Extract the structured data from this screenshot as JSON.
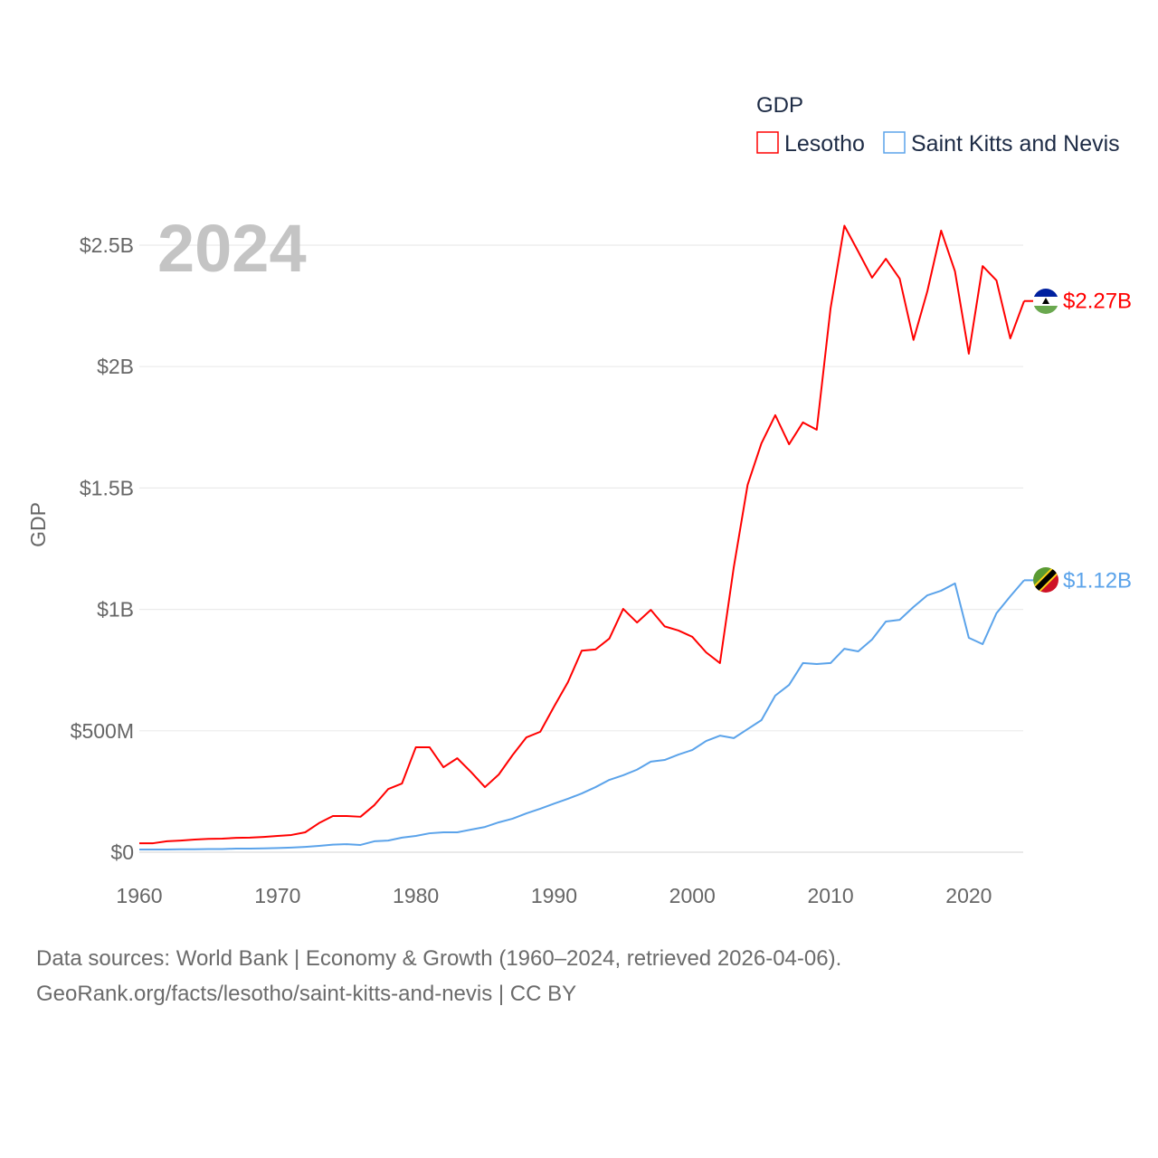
{
  "chart_data": {
    "type": "line",
    "title": "",
    "year_label": "2024",
    "xlabel": "",
    "ylabel": "GDP",
    "xlim": [
      1960,
      2024
    ],
    "ylim": [
      0,
      2.7
    ],
    "y_unit": "USD billions",
    "grid": true,
    "x_ticks": [
      1960,
      1970,
      1980,
      1990,
      2000,
      2010,
      2020
    ],
    "x_tick_labels": [
      "1960",
      "1970",
      "1980",
      "1990",
      "2000",
      "2010",
      "2020"
    ],
    "y_ticks": [
      0,
      0.5,
      1,
      1.5,
      2,
      2.5
    ],
    "y_tick_labels": [
      "$0",
      "$500M",
      "$1B",
      "$1.5B",
      "$2B",
      "$2.5B"
    ],
    "legend": {
      "title": "GDP",
      "placement": "top-right"
    },
    "x": [
      1960,
      1961,
      1962,
      1963,
      1964,
      1965,
      1966,
      1967,
      1968,
      1969,
      1970,
      1971,
      1972,
      1973,
      1974,
      1975,
      1976,
      1977,
      1978,
      1979,
      1980,
      1981,
      1982,
      1983,
      1984,
      1985,
      1986,
      1987,
      1988,
      1989,
      1990,
      1991,
      1992,
      1993,
      1994,
      1995,
      1996,
      1997,
      1998,
      1999,
      2000,
      2001,
      2002,
      2003,
      2004,
      2005,
      2006,
      2007,
      2008,
      2009,
      2010,
      2011,
      2012,
      2013,
      2014,
      2015,
      2016,
      2017,
      2018,
      2019,
      2020,
      2021,
      2022,
      2023,
      2024
    ],
    "series": [
      {
        "name": "Lesotho",
        "color": "#ff0000",
        "end_label": "$2.27B",
        "flag": "lesotho-flag",
        "values": [
          0.037,
          0.037,
          0.045,
          0.048,
          0.052,
          0.055,
          0.056,
          0.059,
          0.06,
          0.063,
          0.067,
          0.071,
          0.082,
          0.12,
          0.149,
          0.149,
          0.146,
          0.194,
          0.26,
          0.283,
          0.432,
          0.432,
          0.35,
          0.387,
          0.33,
          0.268,
          0.32,
          0.4,
          0.473,
          0.496,
          0.6,
          0.7,
          0.83,
          0.835,
          0.88,
          1.002,
          0.946,
          0.998,
          0.93,
          0.913,
          0.887,
          0.823,
          0.779,
          1.174,
          1.513,
          1.684,
          1.8,
          1.68,
          1.77,
          1.74,
          2.24,
          2.58,
          2.474,
          2.366,
          2.444,
          2.362,
          2.11,
          2.31,
          2.56,
          2.392,
          2.053,
          2.414,
          2.355,
          2.116,
          2.27
        ]
      },
      {
        "name": "Saint Kitts and Nevis",
        "color": "#5ba3ea",
        "end_label": "$1.12B",
        "flag": "saint-kitts-and-nevis-flag",
        "values": [
          0.011,
          0.011,
          0.011,
          0.012,
          0.012,
          0.013,
          0.013,
          0.015,
          0.015,
          0.016,
          0.017,
          0.019,
          0.022,
          0.026,
          0.031,
          0.033,
          0.03,
          0.045,
          0.048,
          0.06,
          0.067,
          0.078,
          0.082,
          0.082,
          0.093,
          0.104,
          0.123,
          0.138,
          0.16,
          0.179,
          0.2,
          0.22,
          0.242,
          0.268,
          0.298,
          0.317,
          0.34,
          0.373,
          0.38,
          0.402,
          0.421,
          0.458,
          0.48,
          0.47,
          0.507,
          0.544,
          0.645,
          0.689,
          0.779,
          0.775,
          0.779,
          0.838,
          0.827,
          0.876,
          0.95,
          0.957,
          1.01,
          1.058,
          1.077,
          1.107,
          0.883,
          0.857,
          0.984,
          1.054,
          1.12
        ]
      }
    ]
  },
  "footer": {
    "line1": "Data sources: World Bank | Economy & Growth (1960–2024, retrieved 2026-04-06).",
    "line2": "GeoRank.org/facts/lesotho/saint-kitts-and-nevis | CC BY"
  }
}
